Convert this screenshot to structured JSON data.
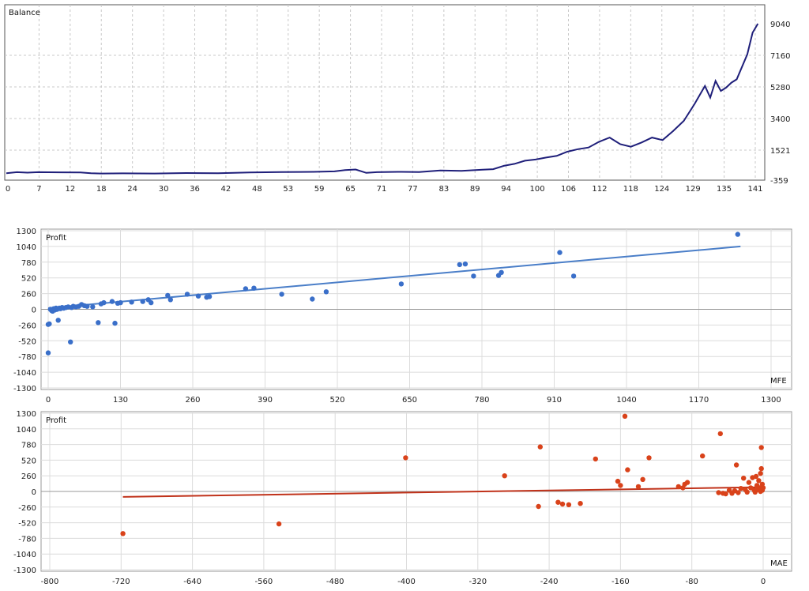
{
  "chart_data": [
    {
      "type": "line",
      "title": "Balance",
      "colors": {
        "line": "#1f1f7a",
        "grid": "#c8c8c8"
      },
      "xticks": [
        "0",
        "7",
        "12",
        "18",
        "24",
        "30",
        "36",
        "42",
        "48",
        "53",
        "59",
        "65",
        "71",
        "77",
        "83",
        "89",
        "94",
        "100",
        "106",
        "112",
        "118",
        "124",
        "129",
        "135",
        "141"
      ],
      "yticks": [
        "9040",
        "7160",
        "5280",
        "3400",
        "1521",
        "-359"
      ],
      "ylim": [
        -359,
        9040
      ],
      "xlim": [
        0,
        143
      ],
      "series": [
        {
          "x": [
            0,
            2,
            4,
            6,
            10,
            14,
            16,
            18,
            22,
            28,
            34,
            40,
            46,
            52,
            58,
            62,
            64,
            66,
            68,
            70,
            74,
            78,
            82,
            86,
            90,
            92,
            94,
            96,
            98,
            100,
            102,
            104,
            106,
            108,
            110,
            112,
            114,
            116,
            118,
            120,
            122,
            124,
            126,
            128,
            130,
            132,
            133,
            134,
            135,
            136,
            137,
            138,
            140,
            141,
            142
          ],
          "y": [
            60,
            120,
            90,
            120,
            110,
            100,
            60,
            40,
            50,
            40,
            70,
            60,
            100,
            130,
            140,
            170,
            250,
            280,
            80,
            120,
            140,
            130,
            220,
            200,
            270,
            300,
            500,
            620,
            810,
            880,
            1000,
            1100,
            1350,
            1500,
            1600,
            1950,
            2200,
            1800,
            1650,
            1900,
            2200,
            2050,
            2600,
            3200,
            4200,
            5300,
            4600,
            5600,
            5000,
            5200,
            5500,
            5700,
            7200,
            8500,
            9040
          ]
        }
      ]
    },
    {
      "type": "scatter",
      "title": "Profit",
      "xlabel": "MFE",
      "colors": {
        "point": "#3a6fc9",
        "line": "#4a7ec8"
      },
      "xticks": [
        "0",
        "130",
        "260",
        "390",
        "520",
        "650",
        "780",
        "910",
        "1040",
        "1170",
        "1300"
      ],
      "yticks": [
        "1300",
        "1040",
        "780",
        "520",
        "260",
        "0",
        "-260",
        "-520",
        "-780",
        "-1040",
        "-1300"
      ],
      "xlim": [
        -5,
        1300
      ],
      "ylim": [
        -1300,
        1300
      ],
      "trend": [
        [
          0,
          20
        ],
        [
          1245,
          1040
        ]
      ],
      "points": [
        [
          0,
          -250
        ],
        [
          2,
          -240
        ],
        [
          0,
          -720
        ],
        [
          4,
          0
        ],
        [
          6,
          -20
        ],
        [
          8,
          -30
        ],
        [
          10,
          10
        ],
        [
          12,
          -10
        ],
        [
          14,
          20
        ],
        [
          16,
          0
        ],
        [
          18,
          -180
        ],
        [
          20,
          20
        ],
        [
          22,
          10
        ],
        [
          25,
          30
        ],
        [
          28,
          20
        ],
        [
          32,
          30
        ],
        [
          36,
          40
        ],
        [
          40,
          -540
        ],
        [
          42,
          30
        ],
        [
          45,
          50
        ],
        [
          50,
          40
        ],
        [
          55,
          50
        ],
        [
          60,
          80
        ],
        [
          65,
          60
        ],
        [
          70,
          50
        ],
        [
          80,
          40
        ],
        [
          90,
          -220
        ],
        [
          95,
          90
        ],
        [
          100,
          110
        ],
        [
          115,
          130
        ],
        [
          120,
          -230
        ],
        [
          125,
          100
        ],
        [
          130,
          110
        ],
        [
          150,
          120
        ],
        [
          170,
          130
        ],
        [
          180,
          160
        ],
        [
          185,
          110
        ],
        [
          215,
          230
        ],
        [
          220,
          160
        ],
        [
          250,
          250
        ],
        [
          270,
          220
        ],
        [
          285,
          200
        ],
        [
          290,
          210
        ],
        [
          355,
          340
        ],
        [
          370,
          350
        ],
        [
          420,
          250
        ],
        [
          475,
          170
        ],
        [
          500,
          290
        ],
        [
          635,
          420
        ],
        [
          740,
          740
        ],
        [
          750,
          750
        ],
        [
          765,
          550
        ],
        [
          810,
          560
        ],
        [
          815,
          610
        ],
        [
          920,
          940
        ],
        [
          945,
          550
        ],
        [
          1240,
          1240
        ]
      ]
    },
    {
      "type": "scatter",
      "title": "Profit",
      "xlabel": "MAE",
      "colors": {
        "point": "#d9421a",
        "line": "#c0321a"
      },
      "xticks": [
        "-800",
        "-720",
        "-640",
        "-560",
        "-480",
        "-400",
        "-320",
        "-240",
        "-160",
        "-80",
        "0"
      ],
      "yticks": [
        "1300",
        "1040",
        "780",
        "520",
        "260",
        "0",
        "-260",
        "-520",
        "-780",
        "-1040",
        "-1300"
      ],
      "xlim": [
        -805,
        5
      ],
      "ylim": [
        -1300,
        1300
      ],
      "trend": [
        [
          -718,
          -90
        ],
        [
          -2,
          70
        ]
      ],
      "points": [
        [
          -718,
          -700
        ],
        [
          -543,
          -540
        ],
        [
          -401,
          560
        ],
        [
          -290,
          260
        ],
        [
          -250,
          740
        ],
        [
          -252,
          -250
        ],
        [
          -230,
          -180
        ],
        [
          -225,
          -210
        ],
        [
          -218,
          -220
        ],
        [
          -205,
          -200
        ],
        [
          -188,
          540
        ],
        [
          -163,
          170
        ],
        [
          -160,
          100
        ],
        [
          -155,
          1250
        ],
        [
          -152,
          360
        ],
        [
          -140,
          80
        ],
        [
          -135,
          200
        ],
        [
          -128,
          560
        ],
        [
          -95,
          80
        ],
        [
          -90,
          60
        ],
        [
          -88,
          120
        ],
        [
          -85,
          150
        ],
        [
          -68,
          590
        ],
        [
          -48,
          960
        ],
        [
          -50,
          -20
        ],
        [
          -45,
          -30
        ],
        [
          -42,
          -40
        ],
        [
          -38,
          20
        ],
        [
          -35,
          -30
        ],
        [
          -32,
          10
        ],
        [
          -30,
          440
        ],
        [
          -28,
          -20
        ],
        [
          -25,
          50
        ],
        [
          -22,
          220
        ],
        [
          -20,
          30
        ],
        [
          -18,
          -10
        ],
        [
          -16,
          150
        ],
        [
          -14,
          60
        ],
        [
          -12,
          230
        ],
        [
          -10,
          20
        ],
        [
          -9,
          -10
        ],
        [
          -8,
          250
        ],
        [
          -7,
          100
        ],
        [
          -6,
          30
        ],
        [
          -5,
          180
        ],
        [
          -4,
          60
        ],
        [
          -3,
          300
        ],
        [
          -3,
          0
        ],
        [
          -2,
          380
        ],
        [
          -2,
          730
        ],
        [
          -1,
          120
        ],
        [
          -1,
          20
        ],
        [
          0,
          60
        ]
      ]
    }
  ]
}
